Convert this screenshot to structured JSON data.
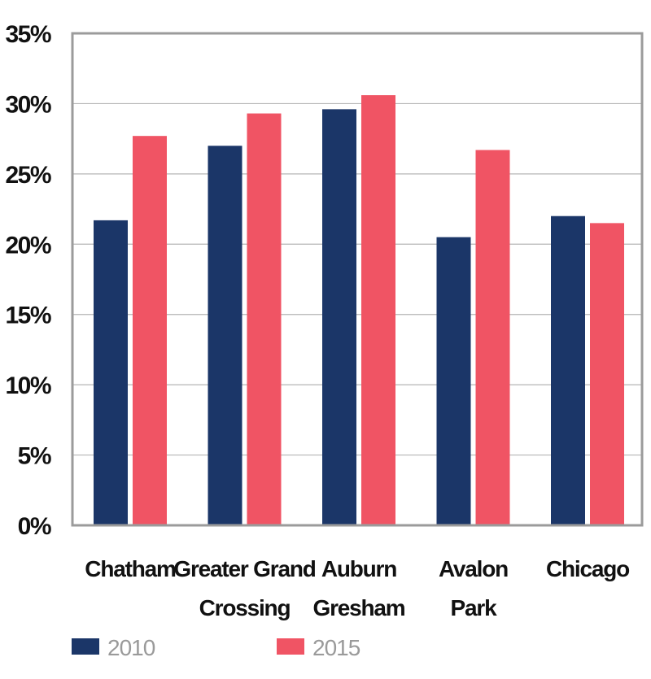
{
  "chart_data": {
    "type": "bar",
    "title": "",
    "xlabel": "",
    "ylabel": "",
    "categories": [
      [
        "Chatham"
      ],
      [
        "Greater Grand",
        "Crossing"
      ],
      [
        "Auburn",
        "Gresham"
      ],
      [
        "Avalon",
        "Park"
      ],
      [
        "Chicago"
      ]
    ],
    "series": [
      {
        "name": "2010",
        "color": "#1b3668",
        "values": [
          21.7,
          27.0,
          29.6,
          20.5,
          22.0
        ]
      },
      {
        "name": "2015",
        "color": "#f05464",
        "values": [
          27.7,
          29.3,
          30.6,
          26.7,
          21.5
        ]
      }
    ],
    "ylim": [
      0,
      35
    ],
    "yticks": [
      0,
      5,
      10,
      15,
      20,
      25,
      30,
      35
    ],
    "ytick_labels": [
      "0%",
      "5%",
      "10%",
      "15%",
      "20%",
      "25%",
      "30%",
      "35%"
    ],
    "grid": true,
    "legend_position": "bottom-left"
  }
}
